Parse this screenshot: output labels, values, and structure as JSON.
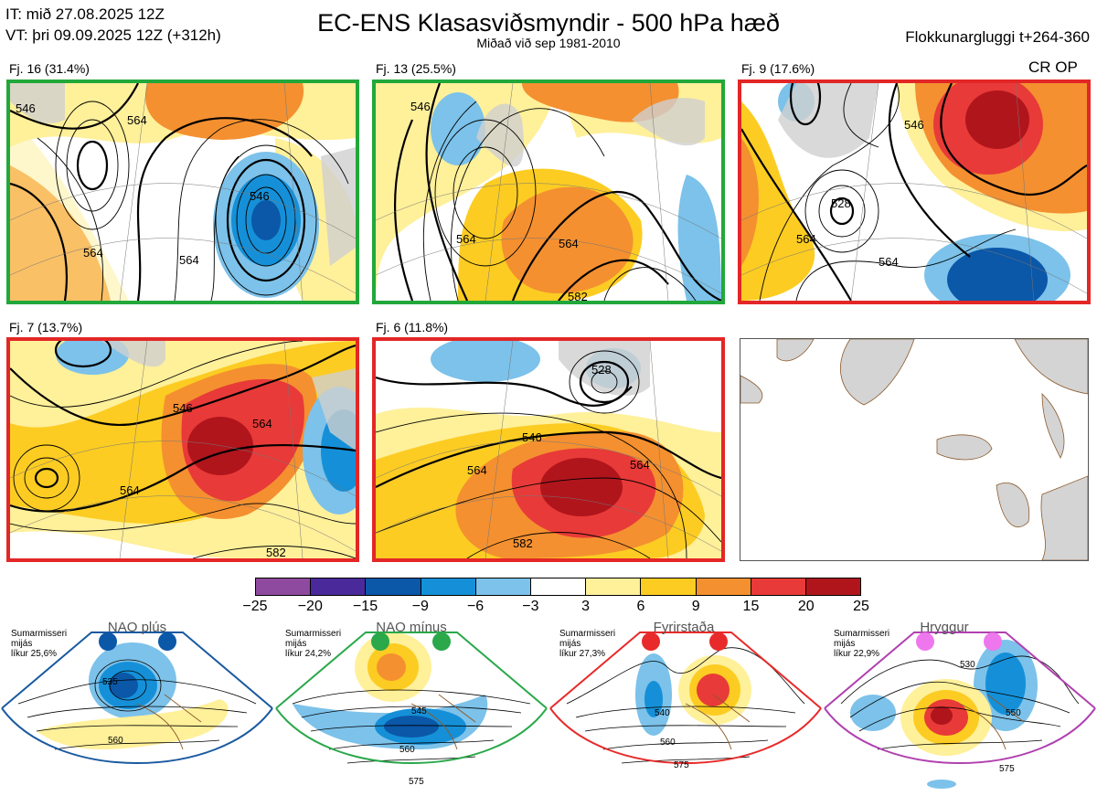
{
  "header": {
    "it_line": "IT: mið 27.08.2025 12Z",
    "vt_line": "VT: þri 09.09.2025 12Z  (+312h)",
    "title": "EC-ENS Klasasviðsmyndir - 500 hPa hæð",
    "subtitle": "Miðað við sep 1981-2010",
    "window_label": "Flokkunargluggi t+264-360"
  },
  "panels": [
    {
      "label": "Fj. 16 (31.4%)",
      "frame_color": "#22a83a",
      "contour_labels": [
        "546",
        "564",
        "564",
        "564",
        "546"
      ]
    },
    {
      "label": "Fj. 13 (25.5%)",
      "frame_color": "#22a83a",
      "contour_labels": [
        "546",
        "564",
        "564",
        "582"
      ]
    },
    {
      "label": "Fj. 9 (17.6%)",
      "frame_color": "#e32626",
      "contour_labels": [
        "528",
        "546",
        "564",
        "564"
      ]
    },
    {
      "label": "Fj. 7 (13.7%)",
      "frame_color": "#e32626",
      "contour_labels": [
        "546",
        "564",
        "564",
        "582"
      ]
    },
    {
      "label": "Fj. 6 (11.8%)",
      "frame_color": "#e32626",
      "contour_labels": [
        "528",
        "546",
        "564",
        "564",
        "582"
      ]
    }
  ],
  "cr_op_label": "CR OP",
  "colorbar": {
    "ticks": [
      "−25",
      "−20",
      "−15",
      "−9",
      "−6",
      "−3",
      "3",
      "6",
      "9",
      "15",
      "20",
      "25"
    ],
    "colors": [
      "#8e4a9e",
      "#4a2a9a",
      "#0b57a8",
      "#1590d8",
      "#7cc2ea",
      "#ffffff",
      "#fff09a",
      "#fccc22",
      "#f49030",
      "#e83a38",
      "#b0151c"
    ]
  },
  "regimes": [
    {
      "name": "NAO plús",
      "season": "Sumarmisseri",
      "freq_word": "mijás",
      "prob": "líkur 25,6%",
      "color": "#1a5aa0",
      "contours": [
        "535",
        "560"
      ]
    },
    {
      "name": "NAO mínus",
      "season": "Sumarmisseri",
      "freq_word": "mijás",
      "prob": "líkur 24,2%",
      "color": "#2aa84a",
      "contours": [
        "545",
        "560",
        "575"
      ]
    },
    {
      "name": "Fyrirstaða",
      "season": "Sumarmisseri",
      "freq_word": "mijás",
      "prob": "líkur 27,3%",
      "color": "#e82a2a",
      "contours": [
        "540",
        "560",
        "575"
      ]
    },
    {
      "name": "Hryggur",
      "season": "Sumarmisseri",
      "freq_word": "mijás",
      "prob": "líkur 22,9%",
      "color": "#b040b0",
      "contours": [
        "530",
        "550",
        "575"
      ]
    }
  ]
}
